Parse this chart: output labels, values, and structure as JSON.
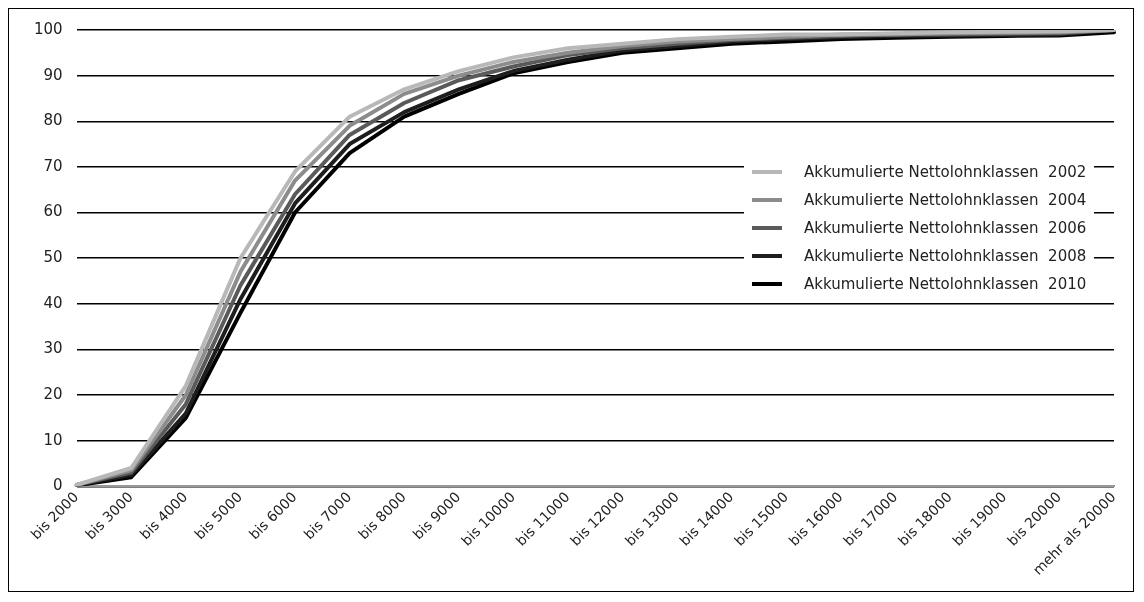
{
  "chart_data": {
    "type": "line",
    "categories": [
      "bis 2000",
      "bis 3000",
      "bis 4000",
      "bis 5000",
      "bis 6000",
      "bis 7000",
      "bis 8000",
      "bis 9000",
      "bis 10000",
      "bis 11000",
      "bis 12000",
      "bis 13000",
      "bis 14000",
      "bis 15000",
      "bis 16000",
      "bis 17000",
      "bis 18000",
      "bis 19000",
      "bis 20000",
      "mehr als 20000"
    ],
    "series": [
      {
        "name": "Akkumulierte Nettolohnklassen  2002",
        "color": "#b8b8b8",
        "values": [
          0.3,
          4,
          22,
          50,
          69,
          81,
          87,
          91,
          94,
          96,
          97,
          98,
          98.5,
          99,
          99,
          99.3,
          99.5,
          99.6,
          99.7,
          100
        ]
      },
      {
        "name": "Akkumulierte Nettolohnklassen  2004",
        "color": "#8c8c8c",
        "values": [
          0.3,
          3.5,
          20,
          47,
          67,
          79,
          86,
          90,
          93,
          95,
          96.5,
          97.5,
          98,
          98.5,
          99,
          99,
          99.3,
          99.4,
          99.5,
          100
        ]
      },
      {
        "name": "Akkumulierte Nettolohnklassen  2006",
        "color": "#5a5a5a",
        "values": [
          0.3,
          3,
          18,
          44,
          64,
          77,
          84,
          89,
          92,
          94.5,
          96,
          97,
          97.8,
          98.3,
          98.7,
          99,
          99,
          99.2,
          99.3,
          100
        ]
      },
      {
        "name": "Akkumulierte Nettolohnklassen  2008",
        "color": "#1e1e1e",
        "values": [
          0.2,
          2.5,
          16,
          41,
          62,
          75,
          82,
          87,
          91,
          93.5,
          95.5,
          96.5,
          97.5,
          98,
          98.4,
          98.7,
          98.8,
          98.9,
          99,
          100
        ]
      },
      {
        "name": "Akkumulierte Nettolohnklassen  2010",
        "color": "#000000",
        "values": [
          0.2,
          2,
          15,
          38,
          60,
          73,
          81,
          86,
          90.5,
          93,
          95,
          96,
          97,
          97.5,
          98,
          98.3,
          98.5,
          98.7,
          98.8,
          99.5
        ]
      }
    ],
    "ylim": [
      0,
      100
    ],
    "yticks": [
      0,
      10,
      20,
      30,
      40,
      50,
      60,
      70,
      80,
      90,
      100
    ],
    "grid": "y",
    "legend": "right",
    "marker": "none",
    "line_style": "solid"
  }
}
